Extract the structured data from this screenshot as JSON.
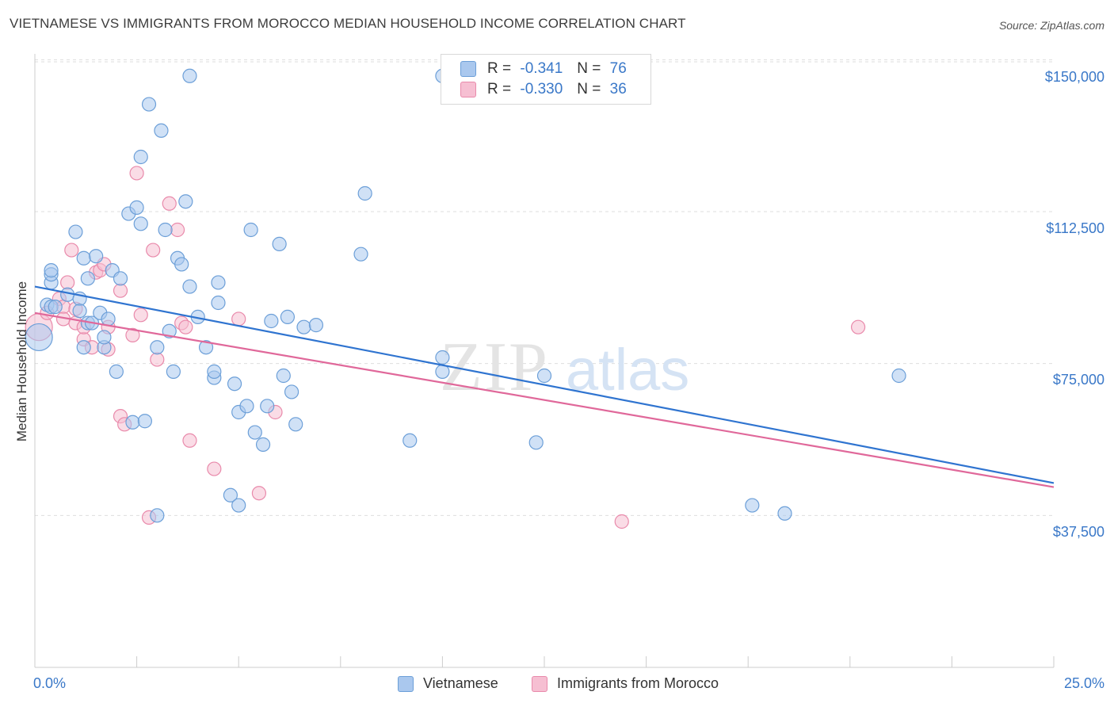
{
  "header": {
    "title": "VIETNAMESE VS IMMIGRANTS FROM MOROCCO MEDIAN HOUSEHOLD INCOME CORRELATION CHART",
    "source": "Source: ZipAtlas.com"
  },
  "watermark": {
    "zip": "ZIP",
    "atlas": "atlas"
  },
  "legend_top": {
    "rows": [
      {
        "r_label": "R =",
        "r_value": "-0.341",
        "n_label": "N =",
        "n_value": "76"
      },
      {
        "r_label": "R =",
        "r_value": "-0.330",
        "n_label": "N =",
        "n_value": "36"
      }
    ]
  },
  "legend_bottom": {
    "items": [
      "Vietnamese",
      "Immigrants from Morocco"
    ]
  },
  "axes": {
    "ylabel": "Median Household Income",
    "x_min_label": "0.0%",
    "x_max_label": "25.0%",
    "y_tick_labels": [
      "$150,000",
      "$112,500",
      "$75,000",
      "$37,500"
    ]
  },
  "colors": {
    "blue_fill": "#aac8ee",
    "blue_stroke": "#6c9fd8",
    "blue_line": "#2f74d0",
    "pink_fill": "#f6bfd2",
    "pink_stroke": "#e98aab",
    "pink_line": "#e0689a",
    "grid": "#dddddd",
    "axis_label": "#3a78c8"
  },
  "chart_data": {
    "type": "scatter",
    "xlabel": "",
    "ylabel": "Median Household Income",
    "xlim": [
      0,
      25
    ],
    "ylim": [
      0,
      153000
    ],
    "y_ticks": [
      37500,
      75000,
      112500,
      150000
    ],
    "grid": true,
    "legend_position": "top-center",
    "series": [
      {
        "name": "Vietnamese",
        "r": -0.341,
        "n": 76,
        "trend": {
          "x": [
            0,
            25
          ],
          "y": [
            94000,
            45500
          ]
        },
        "points": [
          [
            0.1,
            81500,
            2
          ],
          [
            0.3,
            89500,
            1
          ],
          [
            0.4,
            95000,
            1
          ],
          [
            0.4,
            89000,
            1
          ],
          [
            0.5,
            89000,
            1
          ],
          [
            0.4,
            97000,
            1
          ],
          [
            0.4,
            98000,
            1
          ],
          [
            0.8,
            92000,
            1
          ],
          [
            1.0,
            107500,
            1
          ],
          [
            1.1,
            91000,
            1
          ],
          [
            1.2,
            79000,
            1
          ],
          [
            1.1,
            88000,
            1
          ],
          [
            1.2,
            101000,
            1
          ],
          [
            1.3,
            96000,
            1
          ],
          [
            1.3,
            85000,
            1
          ],
          [
            1.4,
            85000,
            1
          ],
          [
            1.5,
            101500,
            1
          ],
          [
            1.7,
            79000,
            1
          ],
          [
            1.6,
            87500,
            1
          ],
          [
            1.7,
            81500,
            1
          ],
          [
            1.8,
            86000,
            1
          ],
          [
            1.9,
            98000,
            1
          ],
          [
            2.1,
            96000,
            1
          ],
          [
            2.0,
            73000,
            1
          ],
          [
            2.3,
            112000,
            1
          ],
          [
            2.4,
            60500,
            1
          ],
          [
            2.5,
            113500,
            1
          ],
          [
            2.6,
            126000,
            1
          ],
          [
            2.6,
            109500,
            1
          ],
          [
            2.7,
            60800,
            1
          ],
          [
            2.8,
            139000,
            1
          ],
          [
            3.0,
            37500,
            1
          ],
          [
            3.0,
            79000,
            1
          ],
          [
            3.1,
            132500,
            1
          ],
          [
            3.2,
            108000,
            1
          ],
          [
            3.3,
            83000,
            1
          ],
          [
            3.4,
            73000,
            1
          ],
          [
            3.5,
            101000,
            1
          ],
          [
            3.6,
            99500,
            1
          ],
          [
            3.7,
            115000,
            1
          ],
          [
            3.8,
            146000,
            1
          ],
          [
            3.8,
            94000,
            1
          ],
          [
            4.0,
            86500,
            1
          ],
          [
            4.2,
            79000,
            1
          ],
          [
            4.4,
            71500,
            1
          ],
          [
            4.4,
            73000,
            1
          ],
          [
            4.5,
            90000,
            1
          ],
          [
            4.5,
            95000,
            1
          ],
          [
            4.8,
            42500,
            1
          ],
          [
            4.9,
            70000,
            1
          ],
          [
            5.0,
            63000,
            1
          ],
          [
            5.0,
            40000,
            1
          ],
          [
            5.2,
            64500,
            1
          ],
          [
            5.3,
            108000,
            1
          ],
          [
            5.4,
            58000,
            1
          ],
          [
            5.6,
            55000,
            1
          ],
          [
            5.7,
            64500,
            1
          ],
          [
            5.8,
            85500,
            1
          ],
          [
            6.0,
            104500,
            1
          ],
          [
            6.1,
            72000,
            1
          ],
          [
            6.2,
            86500,
            1
          ],
          [
            6.3,
            68000,
            1
          ],
          [
            6.4,
            60000,
            1
          ],
          [
            6.6,
            84000,
            1
          ],
          [
            6.9,
            84500,
            1
          ],
          [
            8.1,
            117000,
            1
          ],
          [
            8.0,
            102000,
            1
          ],
          [
            9.2,
            56000,
            1
          ],
          [
            10.0,
            146000,
            1
          ],
          [
            10.0,
            76500,
            1
          ],
          [
            10.0,
            73000,
            1
          ],
          [
            12.3,
            55500,
            1
          ],
          [
            12.5,
            72000,
            1
          ],
          [
            17.6,
            40000,
            1
          ],
          [
            18.4,
            38000,
            1
          ],
          [
            21.2,
            72000,
            1
          ]
        ]
      },
      {
        "name": "Immigrants from Morocco",
        "r": -0.33,
        "n": 36,
        "trend": {
          "x": [
            0,
            25
          ],
          "y": [
            87500,
            44500
          ]
        },
        "points": [
          [
            0.1,
            84000,
            2
          ],
          [
            0.3,
            87500,
            1
          ],
          [
            0.6,
            91000,
            1
          ],
          [
            0.7,
            89000,
            1
          ],
          [
            0.7,
            86000,
            1
          ],
          [
            0.8,
            95000,
            1
          ],
          [
            0.9,
            103000,
            1
          ],
          [
            1.0,
            88500,
            1
          ],
          [
            1.0,
            85000,
            1
          ],
          [
            1.2,
            81000,
            1
          ],
          [
            1.2,
            84000,
            1
          ],
          [
            1.4,
            79000,
            1
          ],
          [
            1.5,
            97500,
            1
          ],
          [
            1.6,
            98000,
            1
          ],
          [
            1.7,
            99500,
            1
          ],
          [
            1.8,
            78500,
            1
          ],
          [
            1.8,
            84000,
            1
          ],
          [
            2.1,
            93000,
            1
          ],
          [
            2.1,
            62000,
            1
          ],
          [
            2.2,
            60000,
            1
          ],
          [
            2.4,
            82000,
            1
          ],
          [
            2.5,
            122000,
            1
          ],
          [
            2.6,
            87000,
            1
          ],
          [
            2.8,
            37000,
            1
          ],
          [
            2.9,
            103000,
            1
          ],
          [
            3.0,
            76000,
            1
          ],
          [
            3.3,
            114500,
            1
          ],
          [
            3.5,
            108000,
            1
          ],
          [
            3.6,
            85000,
            1
          ],
          [
            3.7,
            84000,
            1
          ],
          [
            3.8,
            56000,
            1
          ],
          [
            4.4,
            49000,
            1
          ],
          [
            5.0,
            86000,
            1
          ],
          [
            5.5,
            43000,
            1
          ],
          [
            5.9,
            63000,
            1
          ],
          [
            14.4,
            36000,
            1
          ],
          [
            20.2,
            84000,
            1
          ]
        ]
      }
    ]
  }
}
